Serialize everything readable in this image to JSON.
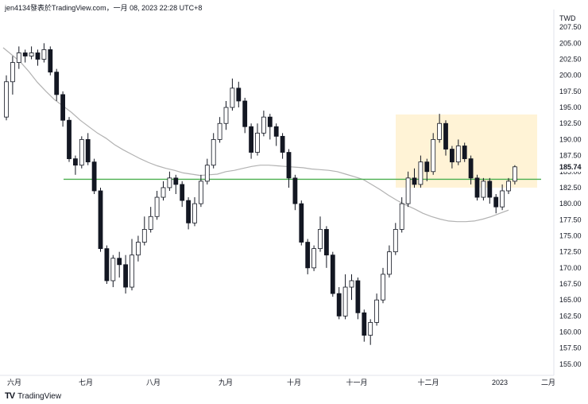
{
  "header": {
    "text": "jen4134發表於TradingView.com，一月 08, 2023 22:28 UTC+8"
  },
  "brand": {
    "logo": "TV",
    "name": "TradingView"
  },
  "chart_data": {
    "type": "candlestick",
    "currency": "TWD",
    "ylim": [
      153.5,
      210
    ],
    "yticks": [
      155.0,
      157.5,
      160.0,
      162.5,
      165.0,
      167.5,
      170.0,
      172.5,
      175.0,
      177.5,
      180.0,
      182.5,
      185.0,
      187.5,
      190.0,
      192.5,
      195.0,
      197.5,
      200.0,
      202.5,
      205.0,
      207.5
    ],
    "xticks": [
      "六月",
      "七月",
      "八月",
      "九月",
      "十月",
      "十一月",
      "十二月",
      "2023",
      "二月"
    ],
    "last_price": "185.74",
    "horizontal_line": {
      "value": 183.8,
      "color": "#4caf50"
    },
    "highlight_zone": {
      "y_low": 182.5,
      "y_high": 193.9,
      "color": "#fff3d6"
    },
    "moving_average": {
      "color": "#b2b2b2",
      "values": [
        204.3,
        203.2,
        202.1,
        200.6,
        198.9,
        197.5,
        196.2,
        195.2,
        194.2,
        193.0,
        192.0,
        191.0,
        190.2,
        189.2,
        188.4,
        187.7,
        187.0,
        186.4,
        185.9,
        185.5,
        185.2,
        184.8,
        184.6,
        184.4,
        184.5,
        184.6,
        185.0,
        185.2,
        185.5,
        185.8,
        186.0,
        186.0,
        185.9,
        185.8,
        185.7,
        185.6,
        185.4,
        185.3,
        185.2,
        185.0,
        184.6,
        184.2,
        183.8,
        183.0,
        182.2,
        181.3,
        180.5,
        179.8,
        179.2,
        178.5,
        178.0,
        177.6,
        177.3,
        177.2,
        177.2,
        177.3,
        177.6,
        178.0,
        178.5,
        179.0
      ]
    },
    "candles": [
      [
        193.5,
        199.0,
        200.0,
        193.0
      ],
      [
        199.0,
        202.0,
        203.0,
        197.0
      ],
      [
        202.0,
        203.5,
        204.5,
        201.0
      ],
      [
        203.5,
        203.0,
        204.0,
        202.0
      ],
      [
        203.0,
        203.5,
        204.5,
        202.5
      ],
      [
        203.5,
        202.5,
        204.0,
        201.5
      ],
      [
        202.5,
        204.0,
        205.0,
        202.0
      ],
      [
        204.0,
        200.5,
        204.5,
        200.0
      ],
      [
        200.5,
        197.0,
        201.0,
        196.0
      ],
      [
        197.0,
        193.0,
        197.5,
        192.0
      ],
      [
        193.0,
        187.0,
        193.5,
        186.5
      ],
      [
        187.0,
        186.0,
        187.5,
        184.5
      ],
      [
        186.0,
        190.0,
        190.5,
        185.5
      ],
      [
        190.0,
        186.5,
        191.0,
        186.0
      ],
      [
        186.5,
        182.0,
        187.0,
        181.5
      ],
      [
        182.0,
        173.0,
        182.5,
        172.5
      ],
      [
        173.0,
        168.0,
        173.5,
        167.5
      ],
      [
        168.0,
        171.5,
        172.0,
        167.0
      ],
      [
        171.5,
        170.5,
        172.5,
        168.5
      ],
      [
        170.5,
        167.0,
        172.0,
        166.0
      ],
      [
        167.0,
        172.0,
        174.5,
        166.5
      ],
      [
        172.0,
        174.0,
        175.0,
        171.0
      ],
      [
        174.0,
        176.0,
        178.0,
        173.5
      ],
      [
        176.0,
        178.0,
        179.5,
        175.5
      ],
      [
        178.0,
        181.0,
        182.0,
        177.5
      ],
      [
        181.0,
        182.5,
        183.5,
        180.5
      ],
      [
        182.5,
        184.0,
        185.0,
        182.0
      ],
      [
        184.0,
        183.0,
        184.5,
        181.5
      ],
      [
        183.0,
        180.5,
        183.5,
        179.5
      ],
      [
        180.5,
        177.0,
        181.0,
        176.0
      ],
      [
        177.0,
        180.0,
        181.0,
        176.5
      ],
      [
        180.0,
        183.5,
        184.5,
        179.5
      ],
      [
        183.5,
        186.0,
        187.0,
        183.0
      ],
      [
        186.0,
        190.0,
        191.0,
        185.5
      ],
      [
        190.0,
        192.5,
        193.5,
        189.5
      ],
      [
        192.5,
        195.0,
        196.0,
        191.5
      ],
      [
        195.0,
        198.0,
        199.5,
        194.5
      ],
      [
        198.0,
        196.0,
        199.0,
        195.0
      ],
      [
        196.0,
        192.0,
        196.5,
        191.0
      ],
      [
        192.0,
        188.0,
        192.5,
        187.0
      ],
      [
        188.0,
        191.0,
        192.5,
        187.5
      ],
      [
        191.0,
        193.5,
        194.5,
        190.5
      ],
      [
        193.5,
        192.0,
        194.0,
        190.0
      ],
      [
        192.0,
        190.5,
        192.5,
        189.0
      ],
      [
        190.5,
        188.0,
        191.0,
        187.0
      ],
      [
        188.0,
        184.0,
        188.5,
        182.5
      ],
      [
        184.0,
        180.0,
        184.5,
        179.0
      ],
      [
        180.0,
        174.0,
        180.5,
        173.5
      ],
      [
        174.0,
        170.0,
        174.5,
        169.0
      ],
      [
        170.0,
        173.0,
        173.5,
        169.5
      ],
      [
        173.0,
        176.0,
        178.0,
        172.5
      ],
      [
        176.0,
        172.0,
        176.5,
        170.0
      ],
      [
        172.0,
        166.0,
        172.5,
        165.5
      ],
      [
        166.0,
        162.5,
        167.0,
        162.0
      ],
      [
        162.5,
        167.0,
        169.0,
        162.0
      ],
      [
        167.0,
        168.0,
        169.0,
        165.0
      ],
      [
        168.0,
        163.0,
        168.5,
        162.0
      ],
      [
        163.0,
        159.5,
        163.5,
        158.5
      ],
      [
        159.5,
        161.5,
        162.0,
        158.0
      ],
      [
        161.5,
        165.0,
        166.0,
        161.0
      ],
      [
        165.0,
        169.0,
        170.0,
        164.5
      ],
      [
        169.0,
        172.5,
        173.5,
        168.5
      ],
      [
        172.5,
        176.0,
        177.0,
        172.0
      ],
      [
        176.0,
        180.0,
        181.0,
        175.5
      ],
      [
        180.0,
        184.0,
        185.0,
        179.5
      ],
      [
        184.0,
        183.0,
        185.5,
        182.5
      ],
      [
        183.0,
        186.5,
        187.5,
        182.5
      ],
      [
        186.5,
        185.0,
        187.0,
        183.5
      ],
      [
        185.0,
        190.0,
        191.0,
        184.5
      ],
      [
        190.0,
        192.5,
        194.0,
        189.5
      ],
      [
        192.5,
        188.5,
        193.0,
        187.5
      ],
      [
        188.5,
        186.5,
        189.0,
        185.5
      ],
      [
        186.5,
        189.0,
        190.0,
        186.0
      ],
      [
        189.0,
        187.0,
        189.5,
        186.5
      ],
      [
        187.0,
        184.0,
        187.5,
        183.0
      ],
      [
        184.0,
        181.0,
        184.5,
        180.5
      ],
      [
        181.0,
        183.5,
        184.0,
        180.5
      ],
      [
        183.5,
        181.0,
        184.0,
        180.0
      ],
      [
        181.0,
        179.5,
        181.5,
        178.5
      ],
      [
        179.5,
        182.0,
        183.0,
        179.0
      ],
      [
        182.0,
        183.5,
        184.0,
        181.5
      ],
      [
        183.5,
        185.74,
        186.0,
        183.0
      ]
    ]
  },
  "colors": {
    "up": "#ffffff",
    "down": "#131722",
    "border": "#131722",
    "axis_line": "#e0e3eb"
  }
}
